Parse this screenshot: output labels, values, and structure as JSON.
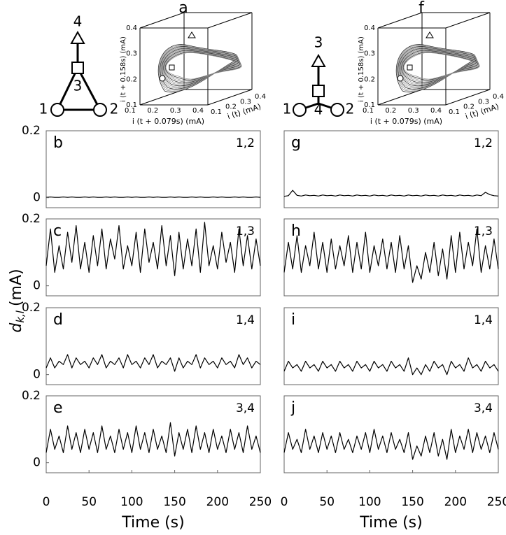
{
  "chart_data": [
    {
      "type": "line",
      "panel": "b",
      "pair": "1,2",
      "color": "#000000",
      "x": [
        0,
        5,
        10,
        15,
        20,
        25,
        30,
        35,
        40,
        45,
        50,
        55,
        60,
        65,
        70,
        75,
        80,
        85,
        90,
        95,
        100,
        105,
        110,
        115,
        120,
        125,
        130,
        135,
        140,
        145,
        150,
        155,
        160,
        165,
        170,
        175,
        180,
        185,
        190,
        195,
        200,
        205,
        210,
        215,
        220,
        225,
        230,
        235,
        240,
        245,
        250
      ],
      "values": [
        0.001,
        0.002,
        0.001,
        0.001,
        0.002,
        0.001,
        0.002,
        0.001,
        0.001,
        0.002,
        0.001,
        0.002,
        0.001,
        0.001,
        0.002,
        0.001,
        0.002,
        0.001,
        0.001,
        0.002,
        0.001,
        0.002,
        0.001,
        0.001,
        0.002,
        0.001,
        0.002,
        0.001,
        0.001,
        0.002,
        0.001,
        0.002,
        0.001,
        0.001,
        0.002,
        0.001,
        0.002,
        0.001,
        0.001,
        0.002,
        0.001,
        0.002,
        0.001,
        0.001,
        0.002,
        0.001,
        0.002,
        0.001,
        0.001,
        0.002,
        0.001
      ],
      "xlim": [
        0,
        250
      ],
      "ylim": [
        -0.03,
        0.2
      ],
      "yticks": [
        0,
        0.2
      ]
    },
    {
      "type": "line",
      "panel": "c",
      "pair": "1,3",
      "color": "#000000",
      "x": [
        0,
        5,
        10,
        15,
        20,
        25,
        30,
        35,
        40,
        45,
        50,
        55,
        60,
        65,
        70,
        75,
        80,
        85,
        90,
        95,
        100,
        105,
        110,
        115,
        120,
        125,
        130,
        135,
        140,
        145,
        150,
        155,
        160,
        165,
        170,
        175,
        180,
        185,
        190,
        195,
        200,
        205,
        210,
        215,
        220,
        225,
        230,
        235,
        240,
        245,
        250
      ],
      "values": [
        0.06,
        0.17,
        0.04,
        0.12,
        0.05,
        0.16,
        0.07,
        0.18,
        0.05,
        0.13,
        0.04,
        0.15,
        0.06,
        0.17,
        0.05,
        0.14,
        0.08,
        0.18,
        0.05,
        0.12,
        0.06,
        0.16,
        0.04,
        0.17,
        0.07,
        0.13,
        0.05,
        0.18,
        0.06,
        0.15,
        0.03,
        0.16,
        0.05,
        0.14,
        0.06,
        0.17,
        0.04,
        0.19,
        0.06,
        0.12,
        0.05,
        0.16,
        0.07,
        0.13,
        0.04,
        0.17,
        0.06,
        0.15,
        0.05,
        0.14,
        0.06
      ],
      "xlim": [
        0,
        250
      ],
      "ylim": [
        -0.03,
        0.2
      ],
      "yticks": [
        0,
        0.2
      ]
    },
    {
      "type": "line",
      "panel": "d",
      "pair": "1,4",
      "color": "#000000",
      "x": [
        0,
        5,
        10,
        15,
        20,
        25,
        30,
        35,
        40,
        45,
        50,
        55,
        60,
        65,
        70,
        75,
        80,
        85,
        90,
        95,
        100,
        105,
        110,
        115,
        120,
        125,
        130,
        135,
        140,
        145,
        150,
        155,
        160,
        165,
        170,
        175,
        180,
        185,
        190,
        195,
        200,
        205,
        210,
        215,
        220,
        225,
        230,
        235,
        240,
        245,
        250
      ],
      "values": [
        0.02,
        0.05,
        0.02,
        0.04,
        0.03,
        0.06,
        0.02,
        0.05,
        0.03,
        0.04,
        0.02,
        0.05,
        0.03,
        0.06,
        0.02,
        0.04,
        0.03,
        0.05,
        0.02,
        0.06,
        0.03,
        0.04,
        0.02,
        0.05,
        0.03,
        0.06,
        0.02,
        0.04,
        0.03,
        0.05,
        0.01,
        0.05,
        0.02,
        0.04,
        0.03,
        0.06,
        0.02,
        0.05,
        0.03,
        0.04,
        0.02,
        0.05,
        0.03,
        0.04,
        0.02,
        0.06,
        0.03,
        0.05,
        0.02,
        0.04,
        0.03
      ],
      "xlim": [
        0,
        250
      ],
      "ylim": [
        -0.03,
        0.2
      ],
      "yticks": [
        0,
        0.2
      ]
    },
    {
      "type": "line",
      "panel": "e",
      "pair": "3,4",
      "color": "#000000",
      "x": [
        0,
        5,
        10,
        15,
        20,
        25,
        30,
        35,
        40,
        45,
        50,
        55,
        60,
        65,
        70,
        75,
        80,
        85,
        90,
        95,
        100,
        105,
        110,
        115,
        120,
        125,
        130,
        135,
        140,
        145,
        150,
        155,
        160,
        165,
        170,
        175,
        180,
        185,
        190,
        195,
        200,
        205,
        210,
        215,
        220,
        225,
        230,
        235,
        240,
        245,
        250
      ],
      "values": [
        0.03,
        0.1,
        0.04,
        0.08,
        0.03,
        0.11,
        0.04,
        0.09,
        0.03,
        0.1,
        0.04,
        0.09,
        0.03,
        0.11,
        0.04,
        0.08,
        0.03,
        0.1,
        0.04,
        0.09,
        0.03,
        0.11,
        0.04,
        0.09,
        0.03,
        0.1,
        0.04,
        0.08,
        0.03,
        0.12,
        0.02,
        0.09,
        0.04,
        0.1,
        0.03,
        0.11,
        0.04,
        0.09,
        0.03,
        0.1,
        0.04,
        0.08,
        0.03,
        0.1,
        0.04,
        0.09,
        0.03,
        0.11,
        0.04,
        0.08,
        0.03
      ],
      "xlim": [
        0,
        250
      ],
      "ylim": [
        -0.03,
        0.2
      ],
      "yticks": [
        0,
        0.2
      ],
      "xticks": [
        0,
        50,
        100,
        150,
        200,
        250
      ],
      "xlabel": "Time (s)"
    },
    {
      "type": "line",
      "panel": "g",
      "pair": "1,2",
      "color": "#000000",
      "x": [
        0,
        5,
        10,
        15,
        20,
        25,
        30,
        35,
        40,
        45,
        50,
        55,
        60,
        65,
        70,
        75,
        80,
        85,
        90,
        95,
        100,
        105,
        110,
        115,
        120,
        125,
        130,
        135,
        140,
        145,
        150,
        155,
        160,
        165,
        170,
        175,
        180,
        185,
        190,
        195,
        200,
        205,
        210,
        215,
        220,
        225,
        230,
        235,
        240,
        245,
        250
      ],
      "values": [
        0.004,
        0.006,
        0.022,
        0.007,
        0.005,
        0.008,
        0.006,
        0.007,
        0.005,
        0.008,
        0.006,
        0.007,
        0.005,
        0.008,
        0.006,
        0.007,
        0.005,
        0.008,
        0.006,
        0.007,
        0.005,
        0.008,
        0.006,
        0.007,
        0.005,
        0.008,
        0.006,
        0.007,
        0.005,
        0.008,
        0.006,
        0.007,
        0.005,
        0.008,
        0.006,
        0.007,
        0.005,
        0.008,
        0.006,
        0.007,
        0.005,
        0.008,
        0.006,
        0.007,
        0.005,
        0.008,
        0.006,
        0.016,
        0.009,
        0.006,
        0.005
      ],
      "xlim": [
        0,
        250
      ],
      "ylim": [
        -0.03,
        0.2
      ]
    },
    {
      "type": "line",
      "panel": "h",
      "pair": "1,3",
      "color": "#000000",
      "x": [
        0,
        5,
        10,
        15,
        20,
        25,
        30,
        35,
        40,
        45,
        50,
        55,
        60,
        65,
        70,
        75,
        80,
        85,
        90,
        95,
        100,
        105,
        110,
        115,
        120,
        125,
        130,
        135,
        140,
        145,
        150,
        155,
        160,
        165,
        170,
        175,
        180,
        185,
        190,
        195,
        200,
        205,
        210,
        215,
        220,
        225,
        230,
        235,
        240,
        245,
        250
      ],
      "values": [
        0.04,
        0.13,
        0.05,
        0.15,
        0.04,
        0.12,
        0.06,
        0.16,
        0.05,
        0.13,
        0.04,
        0.14,
        0.05,
        0.12,
        0.06,
        0.15,
        0.04,
        0.13,
        0.05,
        0.16,
        0.04,
        0.12,
        0.06,
        0.14,
        0.05,
        0.13,
        0.04,
        0.15,
        0.05,
        0.12,
        0.01,
        0.06,
        0.02,
        0.1,
        0.04,
        0.13,
        0.03,
        0.11,
        0.02,
        0.15,
        0.04,
        0.16,
        0.05,
        0.13,
        0.06,
        0.17,
        0.04,
        0.12,
        0.05,
        0.14,
        0.05
      ],
      "xlim": [
        0,
        250
      ],
      "ylim": [
        -0.03,
        0.2
      ]
    },
    {
      "type": "line",
      "panel": "i",
      "pair": "1,4",
      "color": "#000000",
      "x": [
        0,
        5,
        10,
        15,
        20,
        25,
        30,
        35,
        40,
        45,
        50,
        55,
        60,
        65,
        70,
        75,
        80,
        85,
        90,
        95,
        100,
        105,
        110,
        115,
        120,
        125,
        130,
        135,
        140,
        145,
        150,
        155,
        160,
        165,
        170,
        175,
        180,
        185,
        190,
        195,
        200,
        205,
        210,
        215,
        220,
        225,
        230,
        235,
        240,
        245,
        250
      ],
      "values": [
        0.01,
        0.04,
        0.02,
        0.03,
        0.01,
        0.04,
        0.02,
        0.03,
        0.01,
        0.04,
        0.02,
        0.03,
        0.01,
        0.04,
        0.02,
        0.03,
        0.01,
        0.04,
        0.02,
        0.03,
        0.01,
        0.04,
        0.02,
        0.03,
        0.01,
        0.04,
        0.02,
        0.03,
        0.01,
        0.05,
        0.0,
        0.02,
        0.0,
        0.03,
        0.01,
        0.04,
        0.02,
        0.03,
        0.0,
        0.04,
        0.02,
        0.03,
        0.01,
        0.05,
        0.02,
        0.03,
        0.01,
        0.04,
        0.02,
        0.03,
        0.01
      ],
      "xlim": [
        0,
        250
      ],
      "ylim": [
        -0.03,
        0.2
      ]
    },
    {
      "type": "line",
      "panel": "j",
      "pair": "3,4",
      "color": "#000000",
      "x": [
        0,
        5,
        10,
        15,
        20,
        25,
        30,
        35,
        40,
        45,
        50,
        55,
        60,
        65,
        70,
        75,
        80,
        85,
        90,
        95,
        100,
        105,
        110,
        115,
        120,
        125,
        130,
        135,
        140,
        145,
        150,
        155,
        160,
        165,
        170,
        175,
        180,
        185,
        190,
        195,
        200,
        205,
        210,
        215,
        220,
        225,
        230,
        235,
        240,
        245,
        250
      ],
      "values": [
        0.03,
        0.09,
        0.04,
        0.07,
        0.03,
        0.1,
        0.04,
        0.08,
        0.03,
        0.09,
        0.04,
        0.08,
        0.03,
        0.09,
        0.04,
        0.07,
        0.03,
        0.08,
        0.04,
        0.09,
        0.03,
        0.1,
        0.04,
        0.08,
        0.03,
        0.09,
        0.04,
        0.07,
        0.03,
        0.09,
        0.01,
        0.05,
        0.02,
        0.08,
        0.03,
        0.09,
        0.02,
        0.07,
        0.01,
        0.1,
        0.03,
        0.08,
        0.04,
        0.1,
        0.03,
        0.09,
        0.04,
        0.08,
        0.03,
        0.09,
        0.04
      ],
      "xlim": [
        0,
        250
      ],
      "ylim": [
        -0.03,
        0.2
      ],
      "xticks": [
        0,
        50,
        100,
        150,
        200,
        250
      ],
      "xlabel": "Time (s)"
    }
  ],
  "ylabel": {
    "symbol": "d",
    "subscript": "k,l",
    "unit": "(mA)"
  },
  "panels_3d": [
    {
      "panel": "a",
      "xlabel": "i (t + 0.079s) (mA)",
      "ylabel": "i (t + 0.158s) (mA)",
      "zlabel": "i (t) (mA)",
      "xlim": [
        0.1,
        0.4
      ],
      "ylim": [
        0.1,
        0.4
      ],
      "zlim": [
        0.1,
        0.4
      ],
      "xticks": [
        0.1,
        0.2,
        0.3,
        0.4
      ],
      "yticks": [
        0.1,
        0.2,
        0.3,
        0.4
      ],
      "zticks": [
        0.1,
        0.2,
        0.3,
        0.4
      ]
    },
    {
      "panel": "f",
      "xlabel": "i (t + 0.079s) (mA)",
      "ylabel": "i (t + 0.158s) (mA)",
      "zlabel": "i (t) (mA)",
      "xlim": [
        0.1,
        0.4
      ],
      "ylim": [
        0.1,
        0.4
      ],
      "zlim": [
        0.1,
        0.4
      ],
      "xticks": [
        0.1,
        0.2,
        0.3,
        0.4
      ],
      "yticks": [
        0.1,
        0.2,
        0.3,
        0.4
      ],
      "zticks": [
        0.1,
        0.2,
        0.3,
        0.4
      ]
    }
  ],
  "networks": [
    {
      "nodes": [
        "1",
        "2",
        "3",
        "4"
      ]
    },
    {
      "nodes": [
        "1",
        "2",
        "3",
        "4"
      ]
    }
  ]
}
